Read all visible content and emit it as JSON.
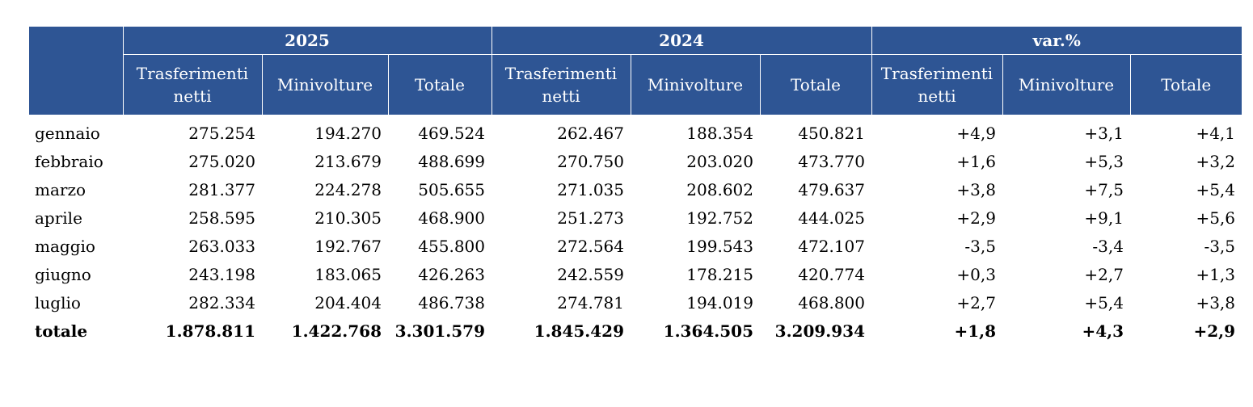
{
  "header": {
    "groups": [
      "2025",
      "2024",
      "var.%"
    ],
    "subcolumns": [
      "Trasferimenti netti",
      "Minivolture",
      "Totale",
      "Trasferimenti netti",
      "Minivolture",
      "Totale",
      "Trasferimenti netti",
      "Minivolture",
      "Totale"
    ]
  },
  "rows": [
    {
      "month": "gennaio",
      "values": [
        "275.254",
        "194.270",
        "469.524",
        "262.467",
        "188.354",
        "450.821",
        "+4,9",
        "+3,1",
        "+4,1"
      ]
    },
    {
      "month": "febbraio",
      "values": [
        "275.020",
        "213.679",
        "488.699",
        "270.750",
        "203.020",
        "473.770",
        "+1,6",
        "+5,3",
        "+3,2"
      ]
    },
    {
      "month": "marzo",
      "values": [
        "281.377",
        "224.278",
        "505.655",
        "271.035",
        "208.602",
        "479.637",
        "+3,8",
        "+7,5",
        "+5,4"
      ]
    },
    {
      "month": "aprile",
      "values": [
        "258.595",
        "210.305",
        "468.900",
        "251.273",
        "192.752",
        "444.025",
        "+2,9",
        "+9,1",
        "+5,6"
      ]
    },
    {
      "month": "maggio",
      "values": [
        "263.033",
        "192.767",
        "455.800",
        "272.564",
        "199.543",
        "472.107",
        "-3,5",
        "-3,4",
        "-3,5"
      ]
    },
    {
      "month": "giugno",
      "values": [
        "243.198",
        "183.065",
        "426.263",
        "242.559",
        "178.215",
        "420.774",
        "+0,3",
        "+2,7",
        "+1,3"
      ]
    },
    {
      "month": "luglio",
      "values": [
        "282.334",
        "204.404",
        "486.738",
        "274.781",
        "194.019",
        "468.800",
        "+2,7",
        "+5,4",
        "+3,8"
      ]
    }
  ],
  "total": {
    "month": "totale",
    "values": [
      "1.878.811",
      "1.422.768",
      "3.301.579",
      "1.845.429",
      "1.364.505",
      "3.209.934",
      "+1,8",
      "+4,3",
      "+2,9"
    ]
  },
  "colors": {
    "header_bg": "#2e5594",
    "header_text": "#ffffff"
  }
}
